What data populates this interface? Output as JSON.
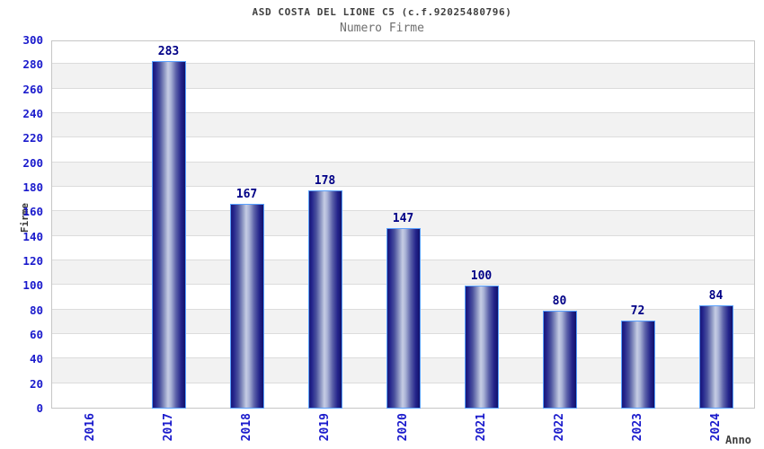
{
  "chart_data": {
    "type": "bar",
    "title": "ASD COSTA DEL LIONE C5 (c.f.92025480796)",
    "subtitle": "Numero Firme",
    "categories": [
      "2016",
      "2017",
      "2018",
      "2019",
      "2020",
      "2021",
      "2022",
      "2023",
      "2024"
    ],
    "values": [
      0,
      283,
      167,
      178,
      147,
      100,
      80,
      72,
      84
    ],
    "xlabel": "Anno",
    "ylabel": "Firme",
    "ylim": [
      0,
      300
    ],
    "ytick_step": 20,
    "yticks": [
      0,
      20,
      40,
      60,
      80,
      100,
      120,
      140,
      160,
      180,
      200,
      220,
      240,
      260,
      280,
      300
    ],
    "grid": "horizontal",
    "legend": "none",
    "value_labels_shown": true,
    "colors": {
      "bar_dark": "#14146e",
      "bar_highlight": "#c6cde4",
      "bar_border": "#58a0ff",
      "tick_label_blue": "#1a1acc",
      "value_label_navy": "#000086",
      "band_alt_gray": "#f2f2f2",
      "gridline": "#dcdcdc",
      "plot_border": "#c6c6c6",
      "title_color": "#3f3f3f",
      "subtitle_color": "#6e6e6e"
    }
  }
}
